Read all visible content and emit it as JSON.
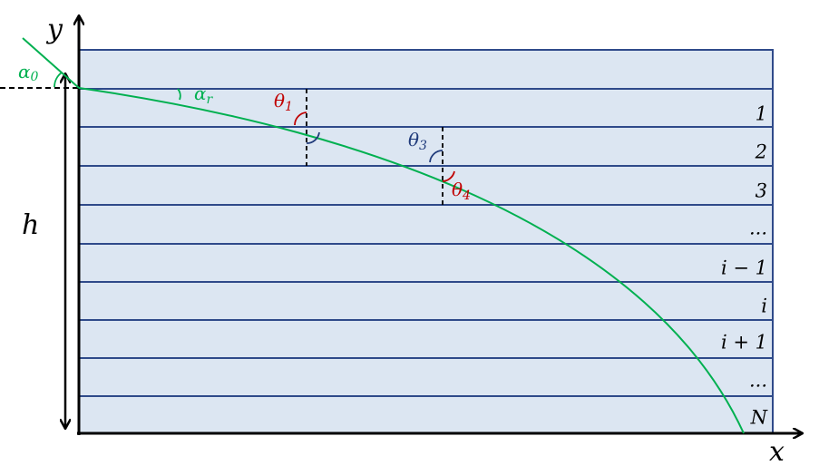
{
  "axes": {
    "y": "y",
    "x": "x",
    "height": "h"
  },
  "angles": [
    {
      "symbol": "α",
      "subscript": "0"
    },
    {
      "symbol": "α",
      "subscript": "r"
    },
    {
      "symbol": "θ",
      "subscript": "1"
    },
    {
      "symbol": "θ",
      "subscript": "3"
    },
    {
      "symbol": "θ",
      "subscript": "4"
    }
  ],
  "layers": [
    "1",
    "2",
    "3",
    "...",
    "i − 1",
    "i",
    "i + 1",
    "...",
    "N"
  ]
}
